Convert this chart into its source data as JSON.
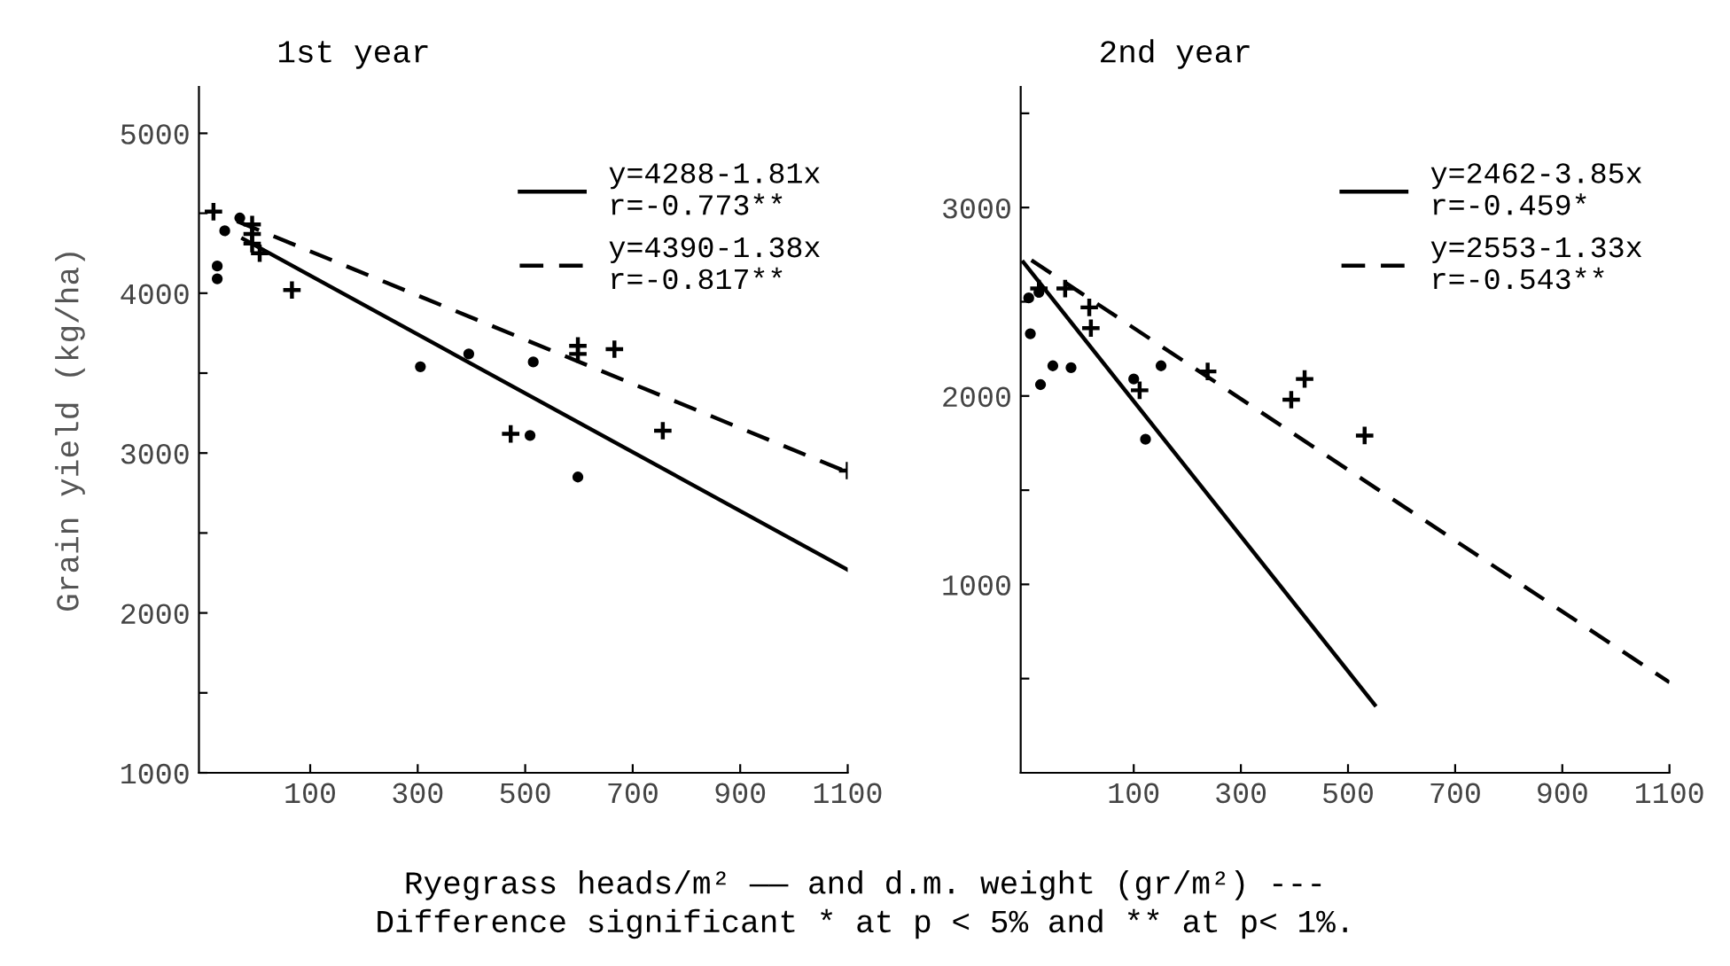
{
  "chart_data": [
    {
      "type": "scatter",
      "title": "1st year",
      "ylabel": "Grain yield (kg/ha)",
      "xlabel": "Ryegrass heads/m² —— and d.m. weight (gr/m²) ---",
      "annotations": [
        "Difference significant * at p < 5% and ** at p< 1%."
      ],
      "xlim": [
        -107,
        1100
      ],
      "xticks": [
        100,
        300,
        500,
        700,
        900,
        1100
      ],
      "ylim": [
        1000,
        5290
      ],
      "yticks": [
        1000,
        {
          "value": 1500,
          "label": null
        },
        2000,
        {
          "value": 2500,
          "label": null
        },
        3000,
        {
          "value": 3500,
          "label": null
        },
        4000,
        {
          "value": 4500,
          "label": null
        },
        5000
      ],
      "grid": false,
      "legend": "top right",
      "series": [
        {
          "marker": "cross",
          "color": "#000000",
          "x": [
            -80,
            -8,
            -8,
            -8,
            6,
            66,
            598,
            598,
            666,
            473,
            756,
            1100
          ],
          "values": [
            4510,
            4430,
            4370,
            4310,
            4250,
            4020,
            3670,
            3620,
            3650,
            3120,
            3140,
            2890
          ]
        },
        {
          "marker": "circle",
          "color": "#000000",
          "x": [
            -59,
            -73,
            -73,
            -31,
            305,
            395,
            515,
            509,
            598
          ],
          "values": [
            4390,
            4170,
            4090,
            4470,
            3540,
            3620,
            3570,
            3110,
            2850
          ]
        },
        {
          "type": "line",
          "name": "y=4288-1.81x\nr=-0.773**",
          "line_style": "solid",
          "color": "#000000",
          "x": [
            -25,
            1100
          ],
          "values": [
            4340,
            2270
          ]
        },
        {
          "type": "line",
          "name": "y=4390-1.38x\nr=-0.817**",
          "line_style": "dashed",
          "color": "#000000",
          "x": [
            -36,
            1100
          ],
          "values": [
            4450,
            2880
          ]
        }
      ]
    },
    {
      "type": "scatter",
      "title": "2nd year",
      "xlim": [
        -111,
        1100
      ],
      "xticks": [
        100,
        300,
        500,
        700,
        900,
        1100
      ],
      "ylim": [
        0,
        3640
      ],
      "yticks": [
        {
          "value": 500,
          "label": null
        },
        1000,
        {
          "value": 1500,
          "label": null
        },
        2000,
        {
          "value": 2500,
          "label": null
        },
        3000,
        {
          "value": 3500,
          "label": null
        }
      ],
      "grid": false,
      "legend": "top right",
      "series": [
        {
          "marker": "cross",
          "color": "#000000",
          "x": [
            -77,
            -28,
            17,
            20,
            111,
            238,
            394,
            419,
            531
          ],
          "values": [
            2570,
            2570,
            2470,
            2360,
            2030,
            2130,
            1980,
            2090,
            1790
          ]
        },
        {
          "marker": "circle",
          "color": "#000000",
          "x": [
            -96,
            -93,
            -77,
            -74,
            -51,
            -17,
            151,
            100,
            122
          ],
          "values": [
            2520,
            2330,
            2550,
            2060,
            2160,
            2150,
            2160,
            2090,
            1770
          ]
        },
        {
          "type": "line",
          "name": "y=2462-3.85x\nr=-0.459*",
          "line_style": "solid",
          "color": "#000000",
          "x": [
            -106,
            550
          ],
          "values": [
            2710,
            360
          ]
        },
        {
          "type": "line",
          "name": "y=2553-1.33x\nr=-0.543**",
          "line_style": "dashed",
          "color": "#000000",
          "x": [
            -91,
            1100
          ],
          "values": [
            2720,
            480
          ]
        }
      ]
    }
  ]
}
